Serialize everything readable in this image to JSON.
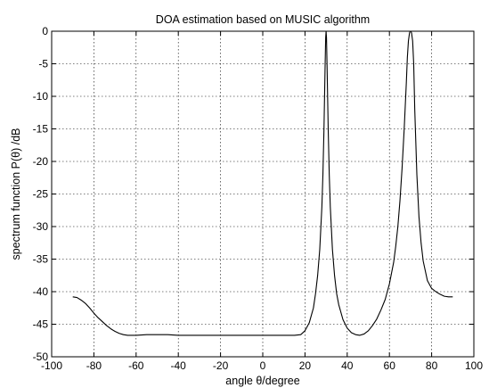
{
  "chart_data": {
    "type": "line",
    "title": "DOA estimation based on MUSIC algorithm",
    "xlabel": "angle θ/degree",
    "ylabel": "spectrum function P(θ) /dB",
    "xlim": [
      -100,
      100
    ],
    "ylim": [
      -50,
      0
    ],
    "xticks": [
      -100,
      -80,
      -60,
      -40,
      -20,
      0,
      20,
      40,
      60,
      80,
      100
    ],
    "yticks": [
      0,
      -5,
      -10,
      -15,
      -20,
      -25,
      -30,
      -35,
      -40,
      -45,
      -50
    ],
    "grid": true,
    "series": [
      {
        "color": "#000000",
        "x": [
          -90,
          -88,
          -86,
          -84,
          -82,
          -80,
          -78,
          -76,
          -74,
          -72,
          -70,
          -68,
          -66,
          -64,
          -62,
          -60,
          -55,
          -50,
          -45,
          -40,
          -35,
          -30,
          -25,
          -20,
          -15,
          -10,
          -5,
          0,
          5,
          10,
          15,
          18,
          20,
          22,
          24,
          25,
          26,
          27,
          28,
          28.5,
          29,
          29.5,
          29.8,
          30,
          30.2,
          30.5,
          31,
          31.5,
          32,
          33,
          34,
          35,
          36,
          38,
          40,
          42,
          44,
          46,
          48,
          50,
          52,
          54,
          56,
          58,
          60,
          62,
          63,
          64,
          65,
          66,
          67,
          68,
          68.5,
          69,
          69.5,
          69.8,
          70,
          70.2,
          70.5,
          71,
          71.5,
          72,
          73,
          74,
          75,
          76,
          78,
          80,
          82,
          84,
          86,
          88,
          90
        ],
        "y": [
          -40.8,
          -40.9,
          -41.3,
          -41.8,
          -42.5,
          -43.3,
          -44.0,
          -44.6,
          -45.2,
          -45.7,
          -46.1,
          -46.4,
          -46.6,
          -46.7,
          -46.7,
          -46.7,
          -46.6,
          -46.6,
          -46.6,
          -46.7,
          -46.7,
          -46.7,
          -46.7,
          -46.7,
          -46.7,
          -46.7,
          -46.7,
          -46.7,
          -46.7,
          -46.7,
          -46.7,
          -46.6,
          -46.0,
          -44.8,
          -42.5,
          -40.3,
          -37.5,
          -33.5,
          -27.0,
          -22.0,
          -15.0,
          -6.0,
          -1.0,
          0,
          -1.0,
          -6.0,
          -15.0,
          -22.0,
          -27.0,
          -33.5,
          -37.5,
          -40.3,
          -42.0,
          -44.3,
          -45.6,
          -46.3,
          -46.6,
          -46.7,
          -46.5,
          -46.0,
          -45.2,
          -44.2,
          -42.8,
          -41.2,
          -38.8,
          -35.5,
          -33.0,
          -30.0,
          -26.0,
          -21.0,
          -15.0,
          -8.0,
          -4.0,
          -1.5,
          -0.3,
          0,
          0,
          0,
          -0.3,
          -1.5,
          -5.0,
          -12.0,
          -22.0,
          -28.5,
          -32.5,
          -35.3,
          -38.3,
          -39.5,
          -40.0,
          -40.4,
          -40.7,
          -40.8,
          -40.8
        ]
      }
    ]
  }
}
